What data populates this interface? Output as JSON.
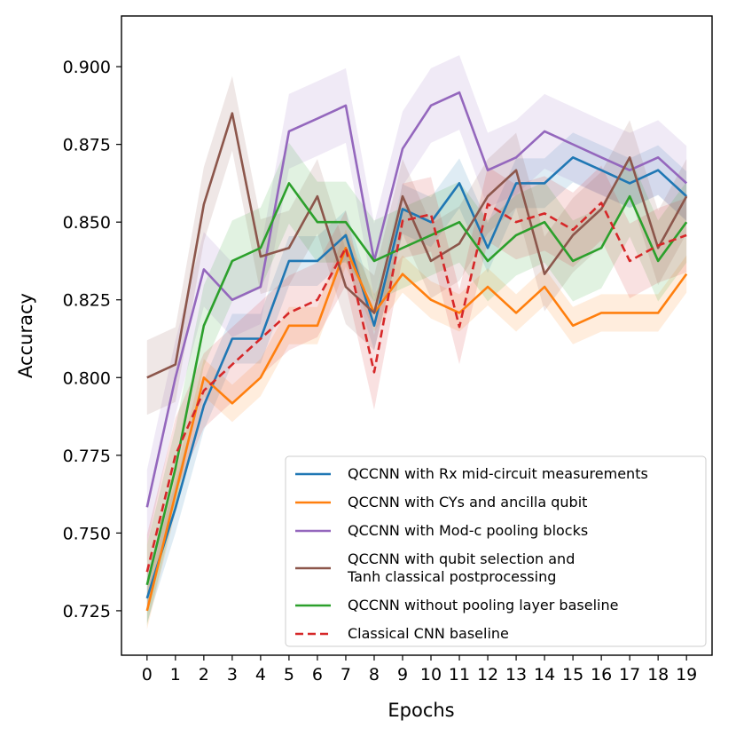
{
  "chart_data": {
    "type": "line",
    "title": "",
    "xlabel": "Epochs",
    "ylabel": "Accuracy",
    "xlim": [
      -0.9,
      19.9
    ],
    "ylim": [
      0.7107,
      0.9163
    ],
    "x": [
      0,
      1,
      2,
      3,
      4,
      5,
      6,
      7,
      8,
      9,
      10,
      11,
      12,
      13,
      14,
      15,
      16,
      17,
      18,
      19
    ],
    "x_tick_labels": [
      "0",
      "1",
      "2",
      "3",
      "4",
      "5",
      "6",
      "7",
      "8",
      "9",
      "10",
      "11",
      "12",
      "13",
      "14",
      "15",
      "16",
      "17",
      "18",
      "19"
    ],
    "y_ticks": [
      0.725,
      0.75,
      0.775,
      0.8,
      0.825,
      0.85,
      0.875,
      0.9
    ],
    "y_tick_labels": [
      "0.725",
      "0.750",
      "0.775",
      "0.800",
      "0.825",
      "0.850",
      "0.875",
      "0.900"
    ],
    "grid": false,
    "legend_position": "lower-right",
    "series": [
      {
        "name": "QCCNN with Rx mid-circuit measurements",
        "color": "#1f77b4",
        "dash": "solid",
        "values": [
          0.729,
          0.758,
          0.791,
          0.8125,
          0.8125,
          0.8375,
          0.8375,
          0.8458,
          0.8167,
          0.8542,
          0.85,
          0.8625,
          0.8417,
          0.8625,
          0.8625,
          0.8708,
          0.8667,
          0.8625,
          0.8667,
          0.8583
        ],
        "band": 0.008
      },
      {
        "name": "QCCNN with CYs and ancilla qubit",
        "color": "#ff7f0e",
        "dash": "solid",
        "values": [
          0.725,
          0.7625,
          0.8,
          0.7917,
          0.8,
          0.8167,
          0.8167,
          0.8417,
          0.8208,
          0.8333,
          0.825,
          0.8208,
          0.8292,
          0.8208,
          0.8292,
          0.8167,
          0.8208,
          0.8208,
          0.8208,
          0.8333
        ],
        "band": 0.006
      },
      {
        "name": "QCCNN with Mod-c pooling blocks",
        "color": "#9467bd",
        "dash": "solid",
        "values": [
          0.7583,
          0.8,
          0.8348,
          0.825,
          0.8292,
          0.8792,
          0.8833,
          0.8875,
          0.8375,
          0.8736,
          0.8875,
          0.8917,
          0.8667,
          0.8708,
          0.8792,
          0.875,
          0.8708,
          0.8667,
          0.8708,
          0.8625
        ],
        "band": 0.012
      },
      {
        "name": "QCCNN with qubit selection and\nTanh classical postprocessing",
        "color": "#8c564b",
        "dash": "solid",
        "values": [
          0.8,
          0.8042,
          0.8557,
          0.885,
          0.8389,
          0.8417,
          0.8583,
          0.8292,
          0.8208,
          0.8583,
          0.8375,
          0.8431,
          0.8583,
          0.8667,
          0.8333,
          0.8458,
          0.8542,
          0.8708,
          0.8417,
          0.8583
        ],
        "band": 0.012
      },
      {
        "name": "QCCNN without pooling layer baseline",
        "color": "#2ca02c",
        "dash": "solid",
        "values": [
          0.7333,
          0.7708,
          0.8167,
          0.8375,
          0.8417,
          0.8625,
          0.85,
          0.85,
          0.8375,
          0.8417,
          0.8458,
          0.85,
          0.8375,
          0.8458,
          0.85,
          0.8375,
          0.8417,
          0.8583,
          0.8375,
          0.85
        ],
        "band": 0.013
      },
      {
        "name": "Classical CNN baseline",
        "color": "#d62728",
        "dash": "dashed",
        "values": [
          0.7375,
          0.775,
          0.7958,
          0.8042,
          0.8125,
          0.8208,
          0.825,
          0.8417,
          0.8017,
          0.8504,
          0.8525,
          0.8163,
          0.8558,
          0.85,
          0.8528,
          0.8475,
          0.8562,
          0.8375,
          0.8425,
          0.8458
        ],
        "band": 0.012
      }
    ]
  }
}
